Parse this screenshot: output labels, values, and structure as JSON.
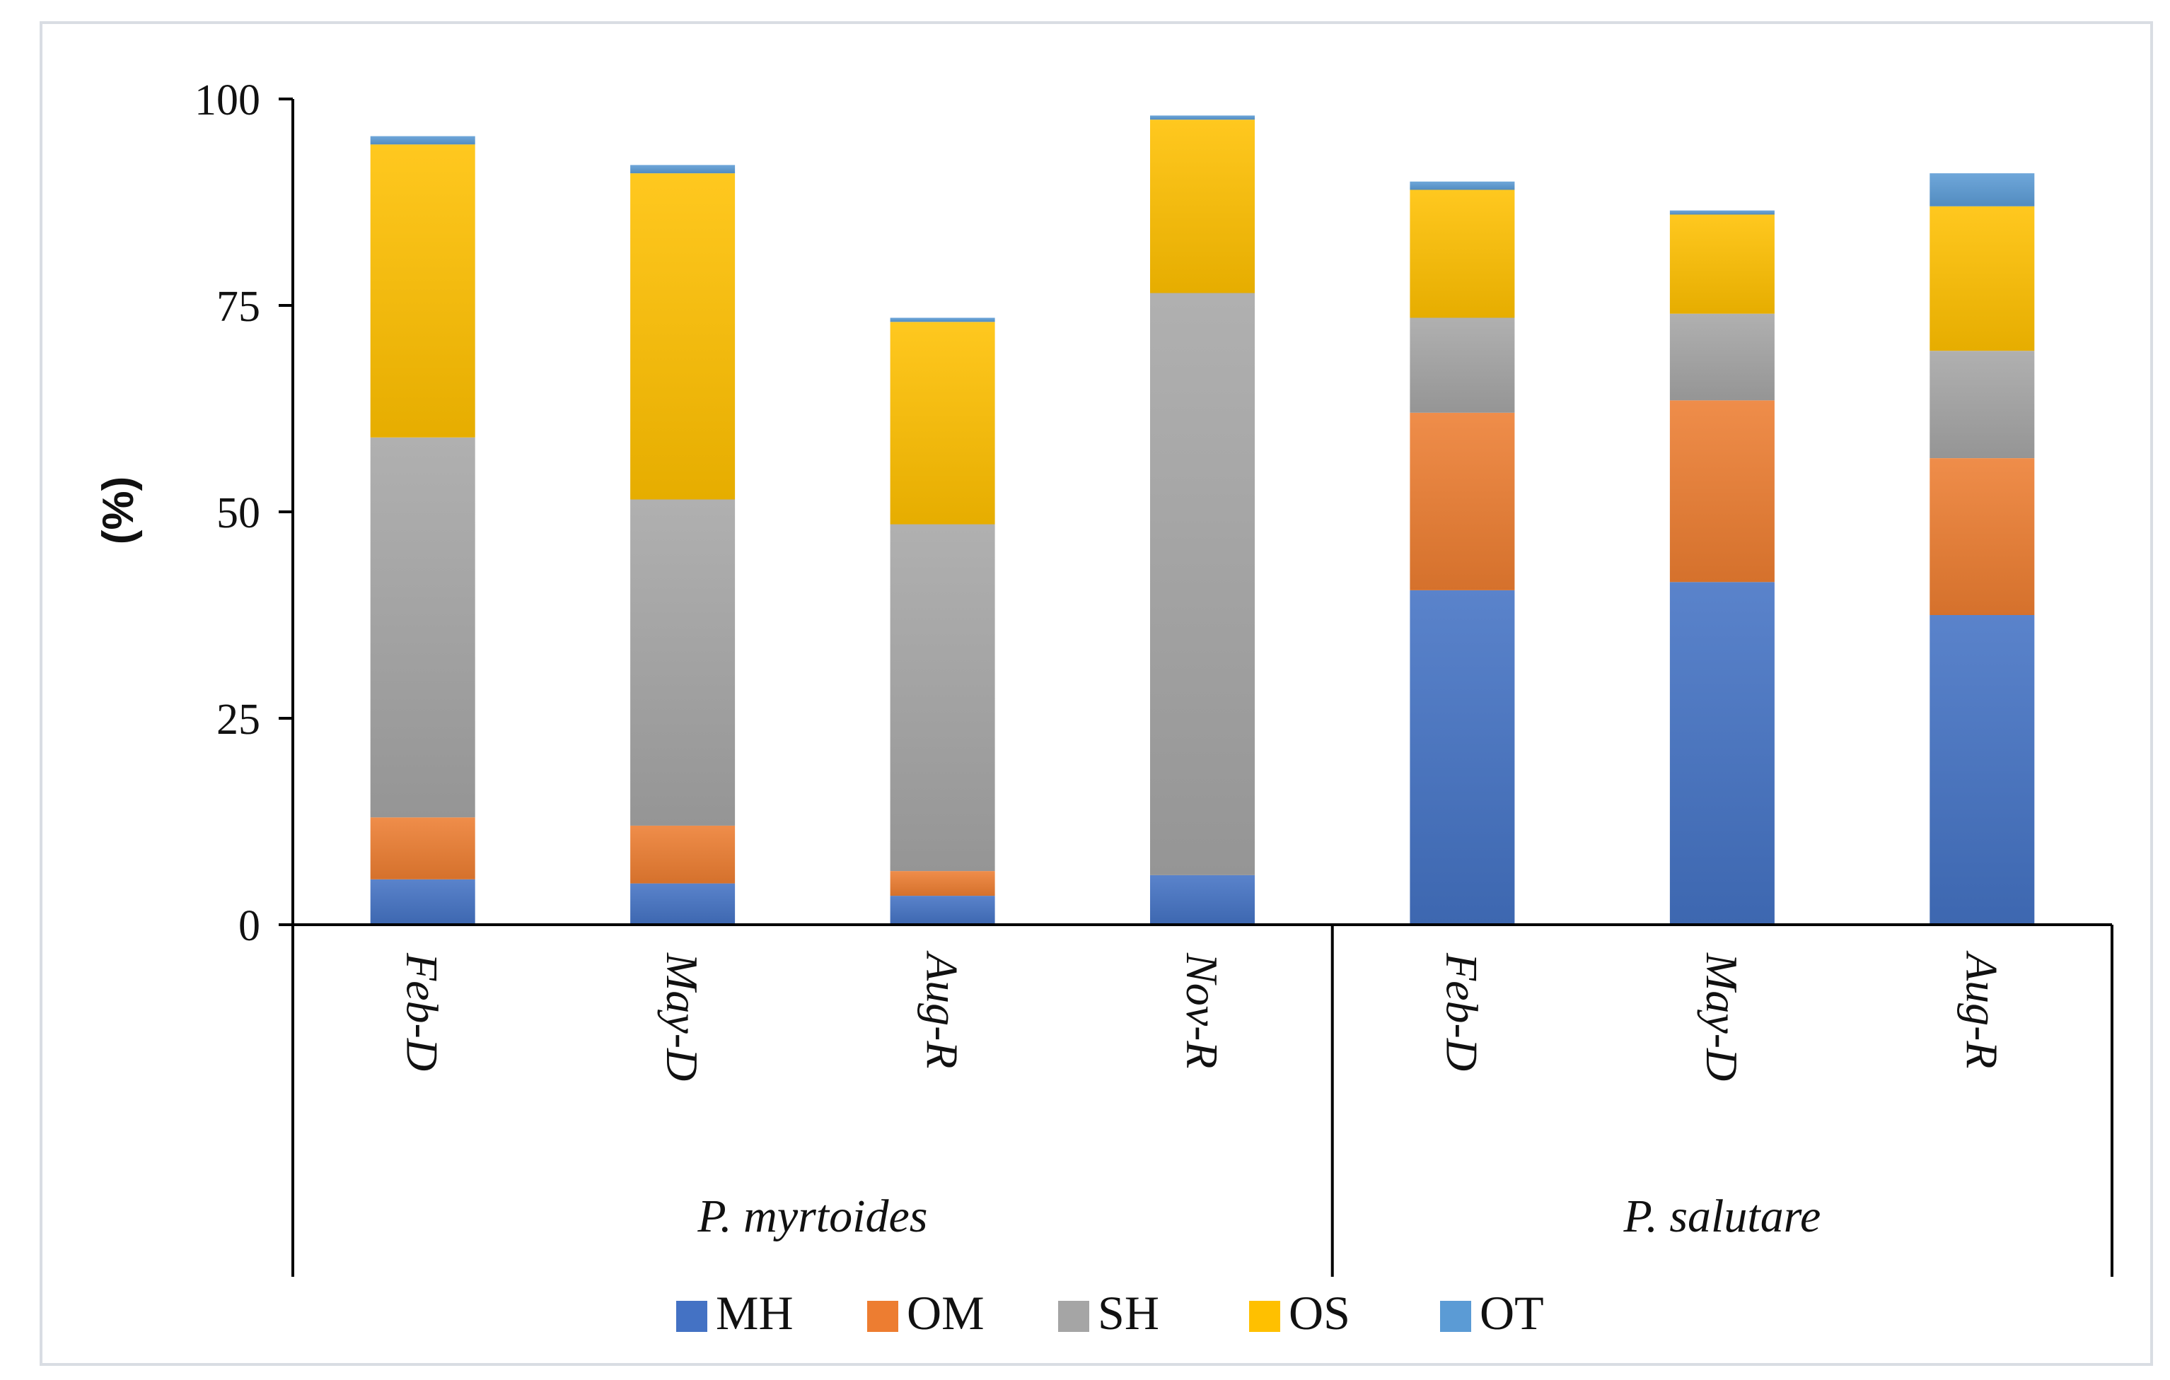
{
  "chart_data": {
    "type": "bar",
    "stacked": true,
    "ylabel": "(%)",
    "ylim": [
      0,
      100
    ],
    "yticks": [
      "0",
      "25",
      "50",
      "75",
      "100"
    ],
    "categories": [
      "Feb-D",
      "May-D",
      "Aug-R",
      "Nov-R",
      "Feb-D",
      "May-D",
      "Aug-R"
    ],
    "groups": [
      {
        "label": "P. myrtoides",
        "categories": [
          0,
          1,
          2,
          3
        ]
      },
      {
        "label": "P. salutare",
        "categories": [
          4,
          5,
          6
        ]
      }
    ],
    "series": [
      {
        "name": "MH",
        "color": "#4472c4",
        "values": [
          5.5,
          5,
          3.5,
          6,
          40.5,
          41.5,
          37.5
        ]
      },
      {
        "name": "OM",
        "color": "#ed7d31",
        "values": [
          7.5,
          7,
          3,
          0,
          21.5,
          22,
          19
        ]
      },
      {
        "name": "SH",
        "color": "#a5a5a5",
        "values": [
          46,
          39.5,
          42,
          70.5,
          11.5,
          10.5,
          13
        ]
      },
      {
        "name": "OS",
        "color": "#ffc000",
        "values": [
          35.5,
          39.5,
          24.5,
          21,
          15.5,
          12,
          17.5
        ]
      },
      {
        "name": "OT",
        "color": "#5b9bd5",
        "values": [
          1,
          1,
          0.5,
          0.5,
          1,
          0.5,
          4
        ]
      }
    ],
    "legend_position": "bottom",
    "grid": false
  }
}
